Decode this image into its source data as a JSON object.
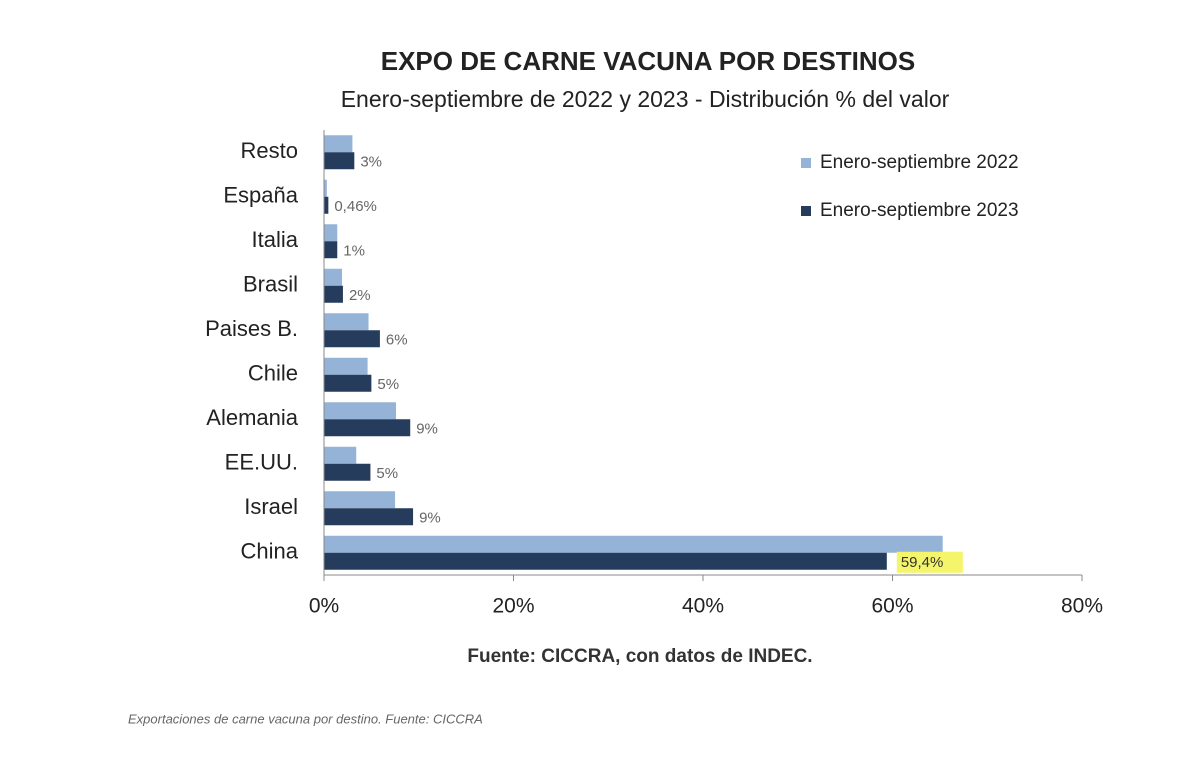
{
  "chart_data": {
    "type": "hbar",
    "title": "EXPO DE CARNE VACUNA POR DESTINOS",
    "subtitle": "Enero-septiembre de 2022 y 2023 - Distribución % del valor",
    "categories": [
      "Resto",
      "España",
      "Italia",
      "Brasil",
      "Paises B.",
      "Chile",
      "Alemania",
      "EE.UU.",
      "Israel",
      "China"
    ],
    "series": [
      {
        "name": "Enero-septiembre 2022",
        "color": "#95b3d7",
        "values": [
          3.0,
          0.3,
          1.4,
          1.9,
          4.7,
          4.6,
          7.6,
          3.4,
          7.5,
          65.3
        ]
      },
      {
        "name": "Enero-septiembre 2023",
        "color": "#263c5c",
        "values": [
          3.2,
          0.46,
          1.4,
          2.0,
          5.9,
          5.0,
          9.1,
          4.9,
          9.4,
          59.4
        ],
        "value_labels": [
          "3%",
          "0,46%",
          "1%",
          "2%",
          "6%",
          "5%",
          "9%",
          "5%",
          "9%",
          "59,4%"
        ]
      }
    ],
    "xlim": [
      0,
      80
    ],
    "xticks": [
      {
        "value": 0,
        "label": "0%"
      },
      {
        "value": 20,
        "label": "20%"
      },
      {
        "value": 40,
        "label": "40%"
      },
      {
        "value": 60,
        "label": "60%"
      },
      {
        "value": 80,
        "label": "80%"
      }
    ],
    "legend": "upper right",
    "source": "Fuente: CICCRA, con datos de INDEC.",
    "caption": "Exportaciones de carne vacuna por destino. Fuente: CICCRA"
  }
}
